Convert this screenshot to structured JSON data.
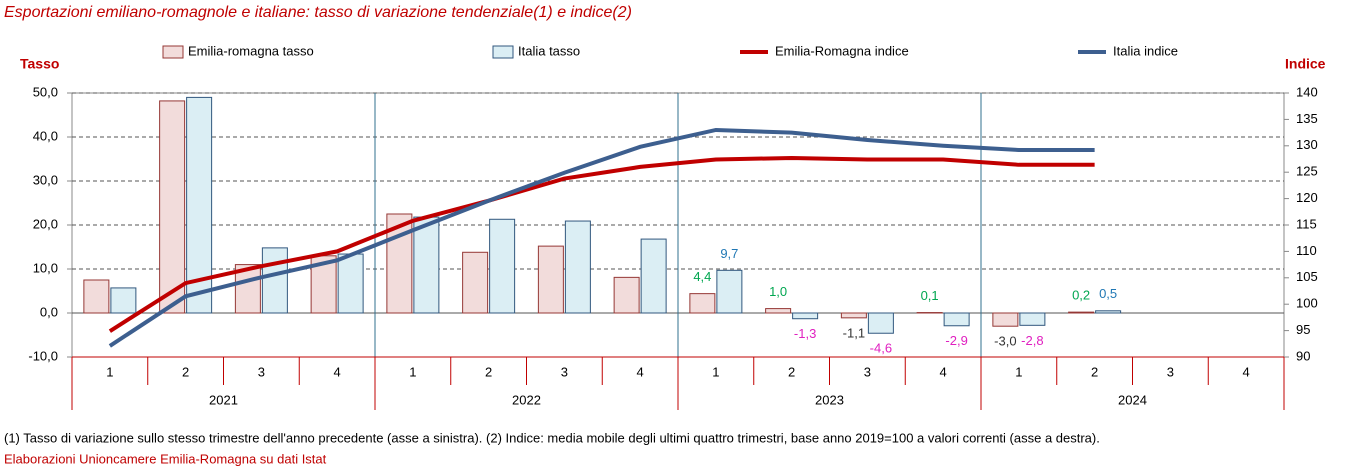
{
  "chart_data": {
    "type": "combo",
    "title": "Esportazioni emiliano-romagnole e italiane: tasso di variazione tendenziale(1) e indice(2)",
    "y_axis_label": "Tasso",
    "y2_axis_label": "Indice",
    "categories": [
      "1",
      "2",
      "3",
      "4",
      "1",
      "2",
      "3",
      "4",
      "1",
      "2",
      "3",
      "4",
      "1",
      "2",
      "3",
      "4"
    ],
    "years": [
      "2021",
      "2022",
      "2023",
      "2024"
    ],
    "ylim": [
      -10,
      50
    ],
    "yticks": [
      {
        "value": -10,
        "label": "-10,0"
      },
      {
        "value": 0,
        "label": "0,0"
      },
      {
        "value": 10,
        "label": "10,0"
      },
      {
        "value": 20,
        "label": "20,0"
      },
      {
        "value": 30,
        "label": "30,0"
      },
      {
        "value": 40,
        "label": "40,0"
      },
      {
        "value": 50,
        "label": "50,0"
      }
    ],
    "y2lim": [
      90,
      140
    ],
    "y2ticks": [
      90,
      95,
      100,
      105,
      110,
      115,
      120,
      125,
      130,
      135,
      140
    ],
    "grid": true,
    "series": [
      {
        "name": "Emilia-romagna tasso",
        "kind": "bar",
        "color": "#f2dcdb",
        "edge": "#953735",
        "values": [
          7.5,
          48.2,
          11.0,
          13.0,
          22.5,
          13.8,
          15.2,
          8.1,
          4.4,
          1.0,
          -1.1,
          0.1,
          -3.0,
          0.2,
          null,
          null
        ],
        "value_labels": [
          null,
          null,
          null,
          null,
          null,
          null,
          null,
          null,
          "4,4",
          "1,0",
          "-1,1",
          "0,1",
          "-3,0",
          "0,2",
          null,
          null
        ]
      },
      {
        "name": "Italia tasso",
        "kind": "bar",
        "color": "#dbeef4",
        "edge": "#31577e",
        "values": [
          5.7,
          49.0,
          14.8,
          13.4,
          21.8,
          21.3,
          20.9,
          16.8,
          9.7,
          -1.3,
          -4.6,
          -2.9,
          -2.8,
          0.5,
          null,
          null
        ],
        "value_labels": [
          null,
          null,
          null,
          null,
          null,
          null,
          null,
          null,
          "9,7",
          "-1,3",
          "-4,6",
          "-2,9",
          "-2,8",
          "0,5",
          null,
          null
        ]
      },
      {
        "name": "Emilia-Romagna indice",
        "kind": "line",
        "axis": "y2",
        "color": "#c00000",
        "values": [
          94.9,
          104.0,
          107.2,
          110.0,
          115.8,
          119.6,
          123.8,
          126.0,
          127.4,
          127.7,
          127.4,
          127.4,
          126.4,
          126.4,
          null,
          null
        ]
      },
      {
        "name": "Italia indice",
        "kind": "line",
        "axis": "y2",
        "color": "#3d5f8f",
        "values": [
          92.1,
          101.5,
          105.1,
          108.3,
          114.0,
          119.6,
          124.9,
          129.8,
          133.0,
          132.5,
          131.1,
          130.0,
          129.2,
          129.2,
          null,
          null
        ]
      }
    ],
    "footnote": "(1) Tasso di variazione sullo stesso trimestre dell'anno precedente (asse a sinistra). (2) Indice: media mobile degli ultimi quattro trimestri, base anno 2019=100 a valori correnti (asse a destra).",
    "source": "Elaborazioni Unioncamere Emilia-Romagna su dati Istat"
  }
}
